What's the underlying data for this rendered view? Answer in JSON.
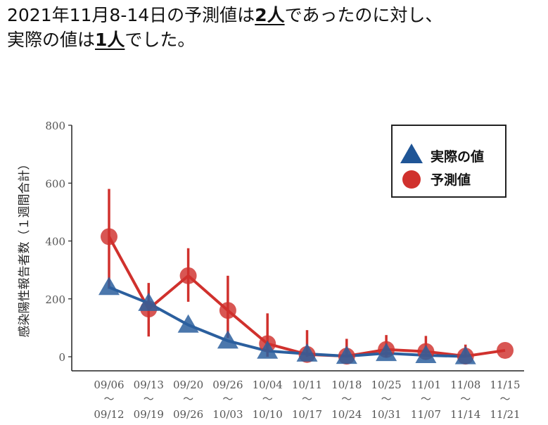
{
  "headline": {
    "line1_prefix": "2021年11月8-14日の予測値は",
    "line1_emph": "2人",
    "line1_suffix": "であったのに対し、",
    "line2_prefix": "実際の値は",
    "line2_emph": "1人",
    "line2_suffix": "でした。"
  },
  "chart_data": {
    "type": "line",
    "title": "",
    "xlabel": "",
    "ylabel": "感染陽性報告者数（１週間合計）",
    "ylim": [
      0,
      800
    ],
    "yticks": [
      0,
      200,
      400,
      600,
      800
    ],
    "categories": [
      {
        "start": "09/06",
        "sep": "～",
        "end": "09/12"
      },
      {
        "start": "09/13",
        "sep": "～",
        "end": "09/19"
      },
      {
        "start": "09/20",
        "sep": "～",
        "end": "09/26"
      },
      {
        "start": "09/26",
        "sep": "～",
        "end": "10/03"
      },
      {
        "start": "10/04",
        "sep": "～",
        "end": "10/10"
      },
      {
        "start": "10/11",
        "sep": "～",
        "end": "10/17"
      },
      {
        "start": "10/18",
        "sep": "～",
        "end": "10/24"
      },
      {
        "start": "10/25",
        "sep": "～",
        "end": "10/31"
      },
      {
        "start": "11/01",
        "sep": "～",
        "end": "11/07"
      },
      {
        "start": "11/08",
        "sep": "～",
        "end": "11/14"
      },
      {
        "start": "11/15",
        "sep": "～",
        "end": "11/21"
      }
    ],
    "series": [
      {
        "name": "実際の値",
        "marker": "triangle",
        "color": "#2b5f9e",
        "values": [
          240,
          185,
          110,
          55,
          20,
          10,
          2,
          12,
          5,
          1,
          null
        ]
      },
      {
        "name": "予測値",
        "marker": "circle",
        "color": "#d0312d",
        "values": [
          415,
          165,
          280,
          160,
          45,
          8,
          2,
          25,
          18,
          2,
          22
        ],
        "error_low": [
          235,
          70,
          190,
          65,
          0,
          0,
          0,
          0,
          0,
          0,
          null
        ],
        "error_high": [
          580,
          255,
          375,
          280,
          150,
          92,
          62,
          75,
          72,
          42,
          null
        ]
      }
    ],
    "legend": {
      "position": "top-right",
      "items": [
        "実際の値",
        "予測値"
      ]
    }
  }
}
